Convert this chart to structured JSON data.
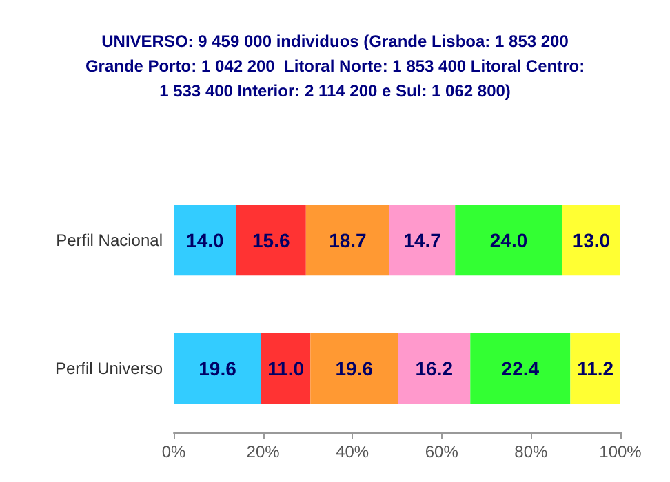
{
  "chart_data": {
    "type": "bar",
    "orientation": "horizontal",
    "stacked": true,
    "title": "UNIVERSO: 9 459 000 individuos (Grande Lisboa: 1 853 200\nGrande Porto: 1 042 200  Litoral Norte: 1 853 400 Litoral Centro:\n1 533 400 Interior: 2 114 200 e Sul: 1 062 800)",
    "categories": [
      "Perfil Nacional",
      "Perfil Universo"
    ],
    "series": [
      {
        "color": "#33ccff",
        "values": [
          14.0,
          19.6
        ],
        "value_labels": [
          "14.0",
          "19.6"
        ]
      },
      {
        "color": "#ff3333",
        "values": [
          15.6,
          11.0
        ],
        "value_labels": [
          "15.6",
          "11.0"
        ]
      },
      {
        "color": "#ff9933",
        "values": [
          18.7,
          19.6
        ],
        "value_labels": [
          "18.7",
          "19.6"
        ]
      },
      {
        "color": "#ff99cc",
        "values": [
          14.7,
          16.2
        ],
        "value_labels": [
          "14.7",
          "16.2"
        ]
      },
      {
        "color": "#33ff33",
        "values": [
          24.0,
          22.4
        ],
        "value_labels": [
          "24.0",
          "22.4"
        ]
      },
      {
        "color": "#ffff33",
        "values": [
          13.0,
          11.2
        ],
        "value_labels": [
          "13.0",
          "11.2"
        ]
      }
    ],
    "xlim": [
      0,
      100
    ],
    "xticks": [
      {
        "value": 0,
        "label": "0%"
      },
      {
        "value": 20,
        "label": "20%"
      },
      {
        "value": 40,
        "label": "40%"
      },
      {
        "value": 60,
        "label": "60%"
      },
      {
        "value": 80,
        "label": "80%"
      },
      {
        "value": 100,
        "label": "100%"
      }
    ]
  }
}
